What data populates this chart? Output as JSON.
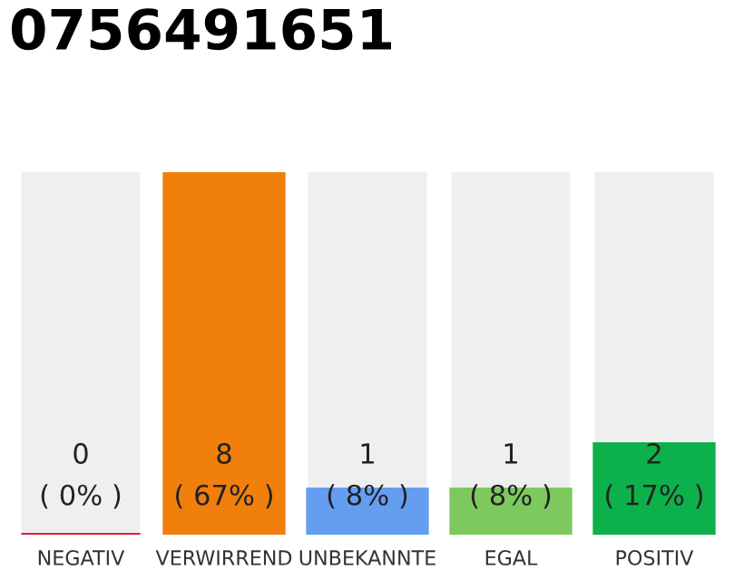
{
  "chart_data": {
    "type": "bar",
    "title": "0756491651",
    "categories": [
      "NEGATIV",
      "VERWIRREND",
      "UNBEKANNTE",
      "EGAL",
      "POSITIV"
    ],
    "values": [
      0,
      8,
      1,
      1,
      2
    ],
    "colors": [
      "#e8193c",
      "#f07f0c",
      "#659ef0",
      "#7dc95e",
      "#0db14b"
    ],
    "value_labels": [
      "0\n( 0% )",
      "8\n( 67% )",
      "1\n( 8% )",
      "1\n( 8% )",
      "2\n( 17% )"
    ],
    "grid": false,
    "legend": false
  }
}
